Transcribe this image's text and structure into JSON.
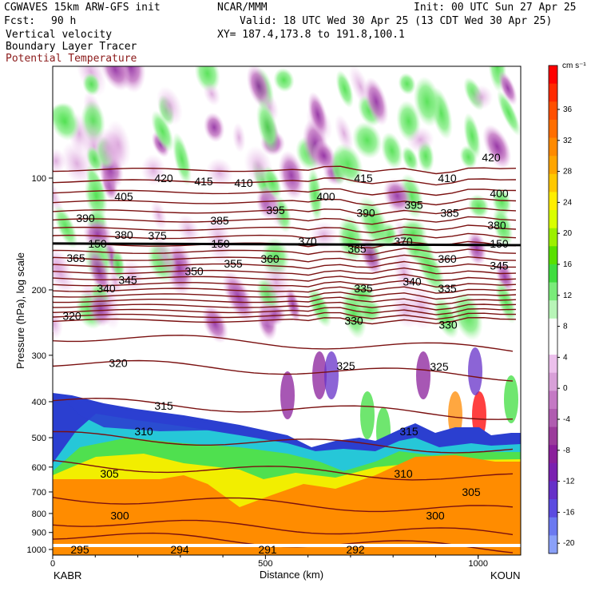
{
  "header": {
    "model": "CGWAVES 15km ARW-GFS init",
    "org": "NCAR/MMM",
    "init": "Init: 00 UTC Sun 27 Apr 25",
    "fcst_label": "Fcst:",
    "fcst_value": "90 h",
    "valid": "Valid: 18 UTC Wed 30 Apr 25 (13 CDT Wed 30 Apr 25)",
    "field1": "Vertical velocity",
    "xy": "XY= 187.4,173.8 to 191.8,100.1",
    "field2": "Boundary Layer Tracer",
    "field3": "Potential Temperature"
  },
  "chart_data": {
    "type": "cross-section",
    "ylabel": "Pressure (hPa), log scale",
    "xlabel": "Distance (km)",
    "y_ticks": [
      "100",
      "200",
      "300",
      "400",
      "500",
      "600",
      "700",
      "800",
      "900",
      "1000"
    ],
    "x_ticks": [
      "0",
      "500",
      "1000"
    ],
    "xlim": [
      0,
      1100
    ],
    "ylim_hpa": [
      1000,
      50
    ],
    "left_end": "KABR",
    "right_end": "KOUN",
    "colorbar_unit": "cm s⁻¹",
    "colorbar_labels": [
      "36",
      "32",
      "28",
      "24",
      "20",
      "16",
      "12",
      "8",
      "4",
      "0",
      "-4",
      "-8",
      "-12",
      "-16",
      "-20"
    ],
    "colorbar_colors": [
      "#ff0000",
      "#ff2a00",
      "#ff4f00",
      "#ff6e00",
      "#ff8a00",
      "#ffa500",
      "#ffc800",
      "#ffee00",
      "#d9ff00",
      "#9cf000",
      "#58e000",
      "#3fdd3f",
      "#7aeb7a",
      "#b8f5b8",
      "#ffffff",
      "#ffffff",
      "#ecc0ec",
      "#d8a0d8",
      "#c479c4",
      "#b05cb0",
      "#9b3b9b",
      "#8a1f9b",
      "#7a20b0",
      "#6630c8",
      "#5b4be0",
      "#6b79f0",
      "#8aa0f8"
    ],
    "theta_labels": [
      {
        "v": "420",
        "x": 205,
        "p": 100
      },
      {
        "v": "415",
        "x": 255,
        "p": 102
      },
      {
        "v": "410",
        "x": 305,
        "p": 103
      },
      {
        "v": "405",
        "x": 155,
        "p": 112
      },
      {
        "v": "395",
        "x": 345,
        "p": 122
      },
      {
        "v": "400",
        "x": 408,
        "p": 112
      },
      {
        "v": "415",
        "x": 455,
        "p": 100
      },
      {
        "v": "410",
        "x": 560,
        "p": 100
      },
      {
        "v": "420",
        "x": 615,
        "p": 88
      },
      {
        "v": "395",
        "x": 518,
        "p": 118
      },
      {
        "v": "390",
        "x": 458,
        "p": 124
      },
      {
        "v": "385",
        "x": 563,
        "p": 124
      },
      {
        "v": "400",
        "x": 625,
        "p": 110
      },
      {
        "v": "390",
        "x": 107,
        "p": 128
      },
      {
        "v": "385",
        "x": 275,
        "p": 130
      },
      {
        "v": "380",
        "x": 155,
        "p": 142
      },
      {
        "v": "375",
        "x": 197,
        "p": 143
      },
      {
        "v": "380",
        "x": 622,
        "p": 134
      },
      {
        "v": "370",
        "x": 385,
        "p": 148
      },
      {
        "v": "365",
        "x": 447,
        "p": 155
      },
      {
        "v": "370",
        "x": 505,
        "p": 148
      },
      {
        "v": "365",
        "x": 95,
        "p": 164
      },
      {
        "v": "360",
        "x": 338,
        "p": 165
      },
      {
        "v": "360",
        "x": 560,
        "p": 165
      },
      {
        "v": "350",
        "x": 243,
        "p": 178
      },
      {
        "v": "355",
        "x": 292,
        "p": 170
      },
      {
        "v": "345",
        "x": 160,
        "p": 188
      },
      {
        "v": "345",
        "x": 625,
        "p": 172
      },
      {
        "v": "340",
        "x": 133,
        "p": 198
      },
      {
        "v": "340",
        "x": 516,
        "p": 190
      },
      {
        "v": "335",
        "x": 455,
        "p": 198
      },
      {
        "v": "335",
        "x": 560,
        "p": 198
      },
      {
        "v": "330",
        "x": 443,
        "p": 242
      },
      {
        "v": "330",
        "x": 561,
        "p": 248
      },
      {
        "v": "325",
        "x": 433,
        "p": 320
      },
      {
        "v": "325",
        "x": 550,
        "p": 322
      },
      {
        "v": "320",
        "x": 148,
        "p": 315
      },
      {
        "v": "320",
        "x": 90,
        "p": 235
      },
      {
        "v": "315",
        "x": 205,
        "p": 410
      },
      {
        "v": "315",
        "x": 512,
        "p": 480
      },
      {
        "v": "310",
        "x": 180,
        "p": 480
      },
      {
        "v": "310",
        "x": 505,
        "p": 625
      },
      {
        "v": "305",
        "x": 137,
        "p": 625
      },
      {
        "v": "305",
        "x": 590,
        "p": 700
      },
      {
        "v": "300",
        "x": 150,
        "p": 810
      },
      {
        "v": "300",
        "x": 545,
        "p": 810
      },
      {
        "v": "295",
        "x": 100,
        "p": 1000
      },
      {
        "v": "294",
        "x": 225,
        "p": 1000
      },
      {
        "v": "291",
        "x": 335,
        "p": 1000
      },
      {
        "v": "292",
        "x": 445,
        "p": 1000
      },
      {
        "v": "150",
        "x": 122,
        "p": 150
      },
      {
        "v": "150",
        "x": 276,
        "p": 150
      },
      {
        "v": "150",
        "x": 625,
        "p": 150
      }
    ]
  }
}
